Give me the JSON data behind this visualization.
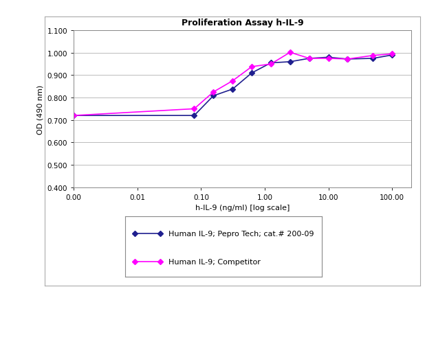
{
  "title": "Proliferation Assay h-IL-9",
  "xlabel": "h-IL-9 (ng/ml) [log scale]",
  "ylabel": "OD (490 nm)",
  "ylim": [
    0.4,
    1.1
  ],
  "yticks": [
    0.4,
    0.5,
    0.6,
    0.7,
    0.8,
    0.9,
    1.0,
    1.1
  ],
  "series1_label": "Human IL-9; Pepro Tech; cat.# 200-09",
  "series1_color": "#1F1F8F",
  "series1_x": [
    0.001,
    0.078,
    0.156,
    0.313,
    0.625,
    1.25,
    2.5,
    5.0,
    10.0,
    20.0,
    50.0,
    100.0
  ],
  "series1_y": [
    0.72,
    0.72,
    0.808,
    0.838,
    0.91,
    0.955,
    0.96,
    0.975,
    0.98,
    0.972,
    0.975,
    0.99
  ],
  "series2_label": "Human IL-9; Competitor",
  "series2_color": "#FF00FF",
  "series2_x": [
    0.001,
    0.078,
    0.156,
    0.313,
    0.625,
    1.25,
    2.5,
    5.0,
    10.0,
    20.0,
    50.0,
    100.0
  ],
  "series2_y": [
    0.72,
    0.75,
    0.825,
    0.875,
    0.938,
    0.95,
    1.002,
    0.975,
    0.975,
    0.972,
    0.988,
    0.995
  ],
  "xtick_positions": [
    0.001,
    0.01,
    0.1,
    1.0,
    10.0,
    100.0
  ],
  "xtick_labels": [
    "0.00",
    "0.01",
    "0.10",
    "1.00",
    "10.00",
    "100.00"
  ],
  "marker": "D",
  "markersize": 4,
  "linewidth": 1.2,
  "title_fontsize": 9,
  "axis_label_fontsize": 8,
  "tick_fontsize": 7.5,
  "legend_fontsize": 8,
  "background_color": "#FFFFFF",
  "outer_box_color": "#999999",
  "grid_color": "#BBBBBB"
}
